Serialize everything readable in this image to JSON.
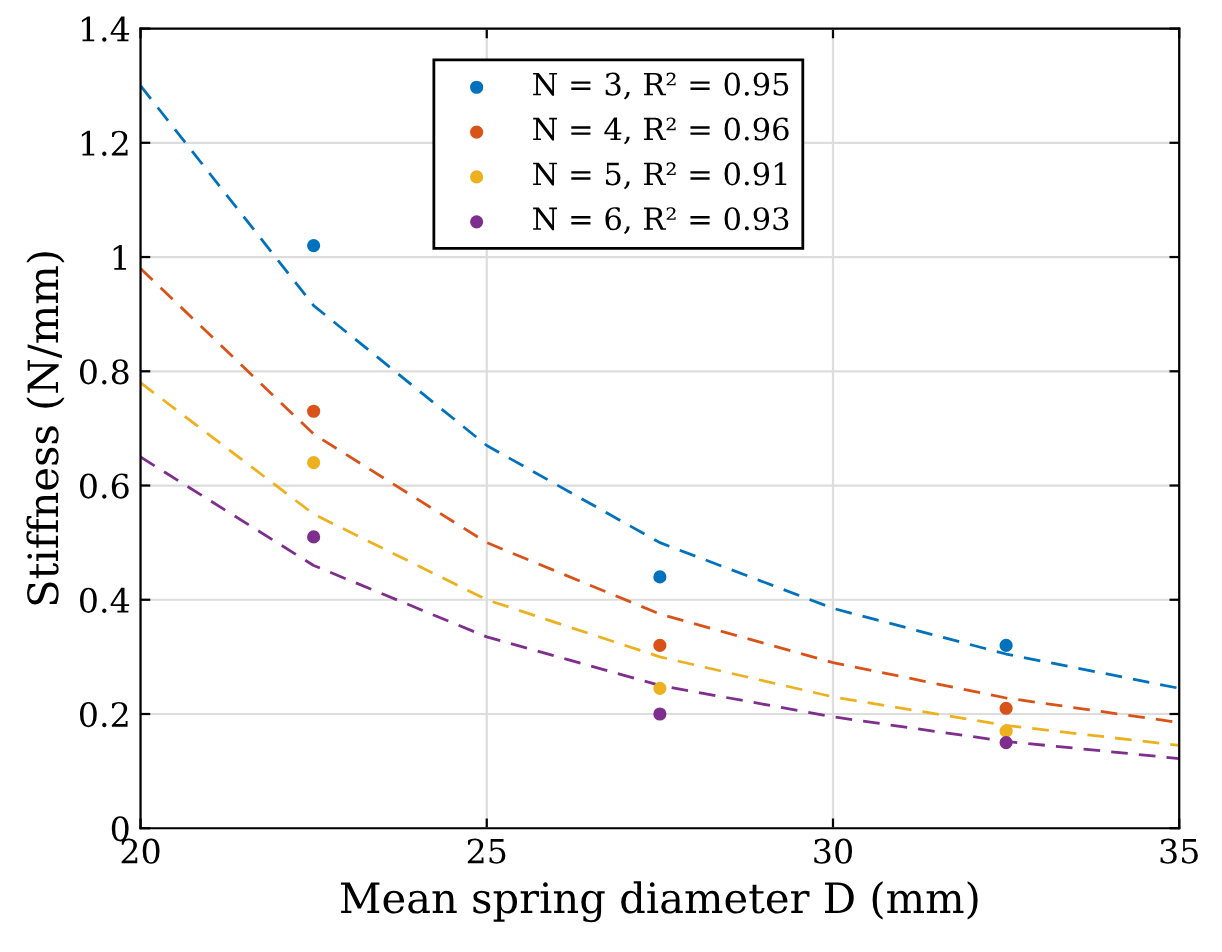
{
  "chart_data": {
    "type": "scatter",
    "xlabel": "Mean spring diameter D (mm)",
    "ylabel": "Stiffness (N/mm)",
    "xlim": [
      20,
      35
    ],
    "xticks": [
      20,
      25,
      30,
      35
    ],
    "ylim": [
      0,
      1.4
    ],
    "yticks": [
      0,
      0.2,
      0.4,
      0.6,
      0.8,
      1,
      1.2,
      1.4
    ],
    "grid": true,
    "legend": "top",
    "series": [
      {
        "name": "N = 3, R² = 0.95",
        "marker": "circle",
        "color": "#0072bd",
        "x": [
          22.5,
          27.5,
          32.5
        ],
        "values": [
          1.02,
          0.44,
          0.32
        ]
      },
      {
        "name": "N = 4, R² = 0.96",
        "marker": "circle",
        "color": "#d95319",
        "x": [
          22.5,
          27.5,
          32.5
        ],
        "values": [
          0.73,
          0.32,
          0.21
        ]
      },
      {
        "name": "N = 5, R² = 0.91",
        "marker": "circle",
        "color": "#edb120",
        "x": [
          22.5,
          27.5,
          32.5
        ],
        "values": [
          0.64,
          0.245,
          0.17
        ]
      },
      {
        "name": "N = 6, R² = 0.93",
        "marker": "circle",
        "color": "#7e2f8e",
        "x": [
          22.5,
          27.5,
          32.5
        ],
        "values": [
          0.51,
          0.2,
          0.15
        ]
      },
      {
        "type": "line",
        "line_style": "dashed",
        "color": "#0072bd",
        "x": [
          20,
          22.5,
          25,
          27.5,
          30,
          32.5,
          35
        ],
        "values": [
          1.3,
          0.915,
          0.67,
          0.5,
          0.385,
          0.305,
          0.245
        ]
      },
      {
        "type": "line",
        "line_style": "dashed",
        "color": "#d95319",
        "x": [
          20,
          22.5,
          25,
          27.5,
          30,
          32.5,
          35
        ],
        "values": [
          0.98,
          0.69,
          0.5,
          0.375,
          0.29,
          0.228,
          0.185
        ]
      },
      {
        "type": "line",
        "line_style": "dashed",
        "color": "#edb120",
        "x": [
          20,
          22.5,
          25,
          27.5,
          30,
          32.5,
          35
        ],
        "values": [
          0.78,
          0.55,
          0.4,
          0.3,
          0.23,
          0.18,
          0.145
        ]
      },
      {
        "type": "line",
        "line_style": "dashed",
        "color": "#7e2f8e",
        "x": [
          20,
          22.5,
          25,
          27.5,
          30,
          32.5,
          35
        ],
        "values": [
          0.65,
          0.46,
          0.335,
          0.25,
          0.195,
          0.152,
          0.122
        ]
      }
    ]
  }
}
